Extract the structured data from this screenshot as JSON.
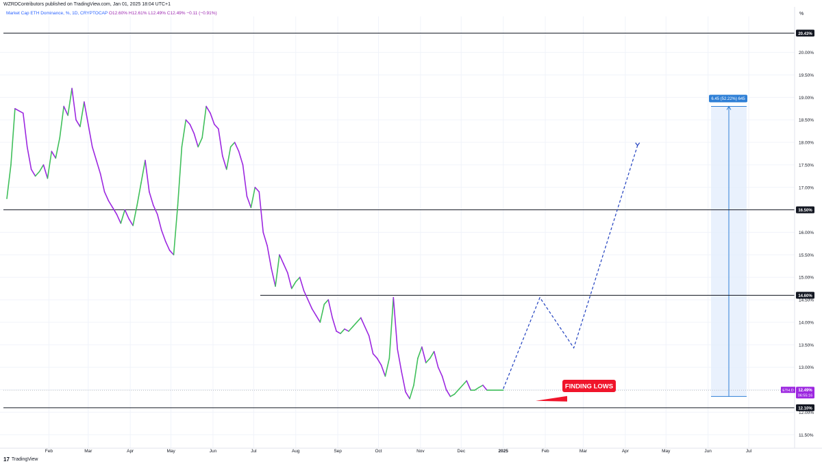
{
  "header": {
    "publisher": "WZRDContributors published on TradingView.com, Jan 01, 2025 18:04 UTC+1",
    "symbol_line": "Market Cap ETH Dominance, %, 1D, CRYPTOCAP",
    "ohlc": "O12.60% H12.61% L12.49% C12.49% −0.11 (−0.91%)"
  },
  "footer": {
    "logo_text": "TradingView"
  },
  "colors": {
    "up": "#26a69a",
    "up_green": "#3fbf5a",
    "down": "#9c27e0",
    "projection": "#1f3fbf",
    "level_line": "#131722",
    "price_tag_bg": "#9c27e0",
    "annotation_red": "#f0152b",
    "measure_fill": "#e3eefc",
    "measure_blue": "#2e7fd6"
  },
  "chart_data": {
    "type": "line",
    "title": "Market Cap ETH Dominance, %, 1D, CRYPTOCAP",
    "ylabel": "%",
    "ylim": [
      11.2,
      20.8
    ],
    "y_ticks": [
      "11.50%",
      "12.00%",
      "12.50%",
      "13.00%",
      "13.50%",
      "14.00%",
      "14.50%",
      "15.00%",
      "15.50%",
      "16.00%",
      "16.50%",
      "17.00%",
      "17.50%",
      "18.00%",
      "18.50%",
      "19.00%",
      "19.50%",
      "20.00%"
    ],
    "x_ticks": [
      "Feb",
      "Mar",
      "Apr",
      "May",
      "Jun",
      "Jul",
      "Aug",
      "Sep",
      "Oct",
      "Nov",
      "Dec",
      "2025",
      "Feb",
      "Mar",
      "Apr",
      "May",
      "Jun",
      "Jul"
    ],
    "series": [
      {
        "type": "close",
        "x": [
          "2024-01-01",
          "2024-01-04",
          "2024-01-07",
          "2024-01-10",
          "2024-01-13",
          "2024-01-16",
          "2024-01-19",
          "2024-01-22",
          "2024-01-25",
          "2024-01-28",
          "2024-01-31",
          "2024-02-03",
          "2024-02-06",
          "2024-02-09",
          "2024-02-12",
          "2024-02-15",
          "2024-02-18",
          "2024-02-21",
          "2024-02-24",
          "2024-02-27",
          "2024-03-01",
          "2024-03-04",
          "2024-03-07",
          "2024-03-10",
          "2024-03-13",
          "2024-03-16",
          "2024-03-19",
          "2024-03-22",
          "2024-03-25",
          "2024-03-28",
          "2024-03-31",
          "2024-04-03",
          "2024-04-06",
          "2024-04-09",
          "2024-04-12",
          "2024-04-15",
          "2024-04-18",
          "2024-04-21",
          "2024-04-24",
          "2024-04-27",
          "2024-04-30",
          "2024-05-03",
          "2024-05-06",
          "2024-05-09",
          "2024-05-12",
          "2024-05-15",
          "2024-05-18",
          "2024-05-21",
          "2024-05-24",
          "2024-05-27",
          "2024-05-30",
          "2024-06-02",
          "2024-06-05",
          "2024-06-08",
          "2024-06-11",
          "2024-06-14",
          "2024-06-17",
          "2024-06-20",
          "2024-06-23",
          "2024-06-26",
          "2024-06-29",
          "2024-07-02",
          "2024-07-05",
          "2024-07-08",
          "2024-07-11",
          "2024-07-14",
          "2024-07-17",
          "2024-07-20",
          "2024-07-23",
          "2024-07-26",
          "2024-07-29",
          "2024-08-01",
          "2024-08-04",
          "2024-08-07",
          "2024-08-10",
          "2024-08-13",
          "2024-08-16",
          "2024-08-19",
          "2024-08-22",
          "2024-08-25",
          "2024-08-28",
          "2024-08-31",
          "2024-09-03",
          "2024-09-06",
          "2024-09-09",
          "2024-09-12",
          "2024-09-15",
          "2024-09-18",
          "2024-09-21",
          "2024-09-24",
          "2024-09-27",
          "2024-09-30",
          "2024-10-03",
          "2024-10-06",
          "2024-10-09",
          "2024-10-12",
          "2024-10-15",
          "2024-10-18",
          "2024-10-21",
          "2024-10-24",
          "2024-10-27",
          "2024-10-30",
          "2024-11-02",
          "2024-11-05",
          "2024-11-08",
          "2024-11-11",
          "2024-11-14",
          "2024-11-17",
          "2024-11-20",
          "2024-11-23",
          "2024-11-26",
          "2024-11-29",
          "2024-12-02",
          "2024-12-05",
          "2024-12-08",
          "2024-12-11",
          "2024-12-14",
          "2024-12-17",
          "2024-12-20",
          "2024-12-23",
          "2024-12-26",
          "2024-12-29",
          "2025-01-01"
        ],
        "values": [
          16.75,
          17.5,
          18.75,
          18.7,
          18.65,
          17.9,
          17.4,
          17.25,
          17.35,
          17.5,
          17.2,
          17.8,
          17.65,
          18.1,
          18.8,
          18.6,
          19.2,
          18.5,
          18.35,
          18.9,
          18.4,
          17.9,
          17.6,
          17.3,
          16.9,
          16.7,
          16.55,
          16.4,
          16.2,
          16.5,
          16.3,
          16.15,
          16.6,
          17.1,
          17.6,
          16.9,
          16.6,
          16.4,
          16.05,
          15.8,
          15.6,
          15.5,
          16.6,
          17.9,
          18.5,
          18.4,
          18.2,
          17.9,
          18.1,
          18.8,
          18.65,
          18.4,
          18.3,
          17.7,
          17.4,
          17.9,
          18.0,
          17.8,
          17.5,
          16.8,
          16.55,
          17.0,
          16.9,
          16.0,
          15.7,
          15.2,
          14.8,
          15.5,
          15.3,
          15.1,
          14.75,
          14.9,
          15.0,
          14.7,
          14.5,
          14.3,
          14.15,
          14.0,
          14.4,
          14.5,
          14.1,
          13.8,
          13.75,
          13.85,
          13.8,
          13.9,
          14.0,
          14.1,
          13.9,
          13.7,
          13.3,
          13.2,
          13.05,
          12.8,
          13.2,
          14.55,
          13.4,
          12.9,
          12.45,
          12.3,
          12.6,
          13.2,
          13.45,
          13.1,
          13.2,
          13.35,
          13.0,
          12.8,
          12.5,
          12.35,
          12.4,
          12.5,
          12.6,
          12.7,
          12.49,
          12.49,
          12.55,
          12.6,
          12.49,
          12.49,
          12.49,
          12.49,
          12.49
        ]
      },
      {
        "name": "Projection",
        "type": "projection",
        "x": [
          "2025-01-01",
          "2025-01-28",
          "2025-02-22",
          "2025-04-10"
        ],
        "values": [
          12.52,
          14.55,
          13.43,
          17.93
        ]
      }
    ],
    "levels": [
      {
        "value": 20.43,
        "label": "20.43%"
      },
      {
        "value": 16.5,
        "label": "16.50%"
      },
      {
        "value": 14.6,
        "label": "14.60%"
      },
      {
        "value": 12.1,
        "label": "12.10%"
      }
    ],
    "current_price": {
      "symbol": "ETH.D",
      "value": 12.49,
      "label": "12.49%",
      "countdown": "06:55:16"
    },
    "measure": {
      "from": 12.35,
      "to": 18.8,
      "label": "6.45 (52.22%) 645"
    },
    "annotation": "FINDING LOWS",
    "grid": true,
    "legend": "top-left"
  }
}
